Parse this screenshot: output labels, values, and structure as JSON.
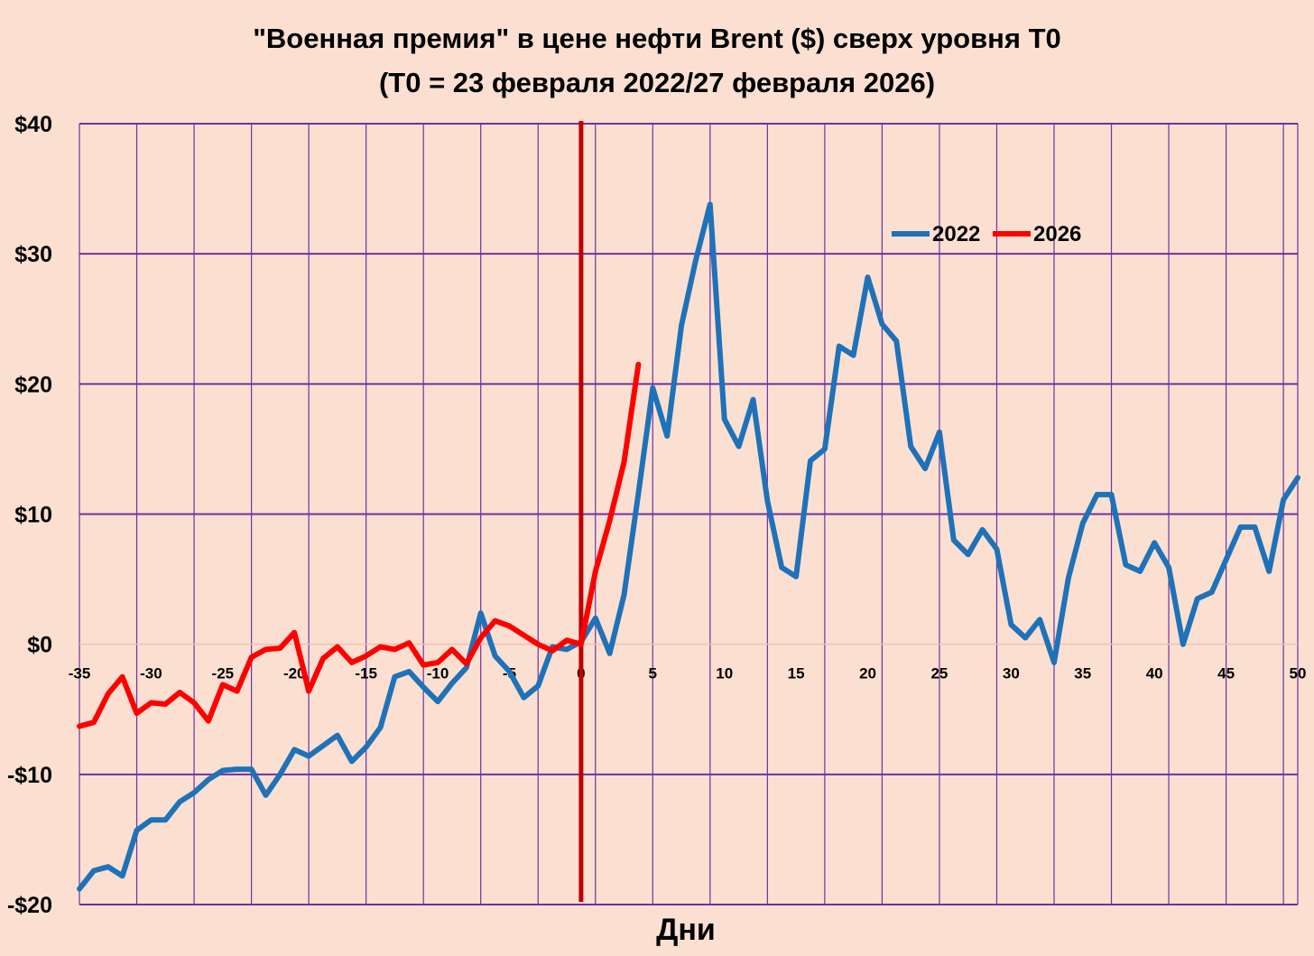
{
  "chart_data": {
    "type": "line",
    "title_line1": "\"Военная премия\" в цене нефти Brent ($) сверх уровня Т0",
    "title_line2": "(Т0 = 23 февраля 2022/27 февраля 2026)",
    "xlabel": "Дни",
    "ylabel": "",
    "xlim": [
      -35,
      50
    ],
    "ylim": [
      -20,
      40
    ],
    "x_ticks": [
      -35,
      -30,
      -25,
      -20,
      -15,
      -10,
      -5,
      0,
      5,
      10,
      15,
      20,
      25,
      30,
      35,
      40,
      45,
      50
    ],
    "y_ticks": [
      {
        "value": 40,
        "label": "$40"
      },
      {
        "value": 30,
        "label": "$30"
      },
      {
        "value": 20,
        "label": "$20"
      },
      {
        "value": 10,
        "label": "$10"
      },
      {
        "value": 0,
        "label": "$0"
      },
      {
        "value": -10,
        "label": "-$10"
      },
      {
        "value": -20,
        "label": "-$20"
      }
    ],
    "grid": true,
    "legend_position": "top-right",
    "vertical_marker": {
      "x": 0,
      "color": "#c00000"
    },
    "colors": {
      "background": "#fbe0d2",
      "grid": "#7030a0",
      "zero_line": "#f2c0b0"
    },
    "series": [
      {
        "name": "2022",
        "color": "#1f72b8",
        "x": [
          -35,
          -34,
          -33,
          -32,
          -31,
          -30,
          -29,
          -28,
          -27,
          -26,
          -25,
          -24,
          -23,
          -22,
          -21,
          -20,
          -19,
          -18,
          -17,
          -16,
          -15,
          -14,
          -13,
          -12,
          -11,
          -10,
          -9,
          -8,
          -7,
          -6,
          -5,
          -4,
          -3,
          -2,
          -1,
          0,
          1,
          2,
          3,
          4,
          5,
          6,
          7,
          8,
          9,
          10,
          11,
          12,
          13,
          14,
          15,
          16,
          17,
          18,
          19,
          20,
          21,
          22,
          23,
          24,
          25,
          26,
          27,
          28,
          29,
          30,
          31,
          32,
          33,
          34,
          35,
          36,
          37,
          38,
          39,
          40,
          41,
          42,
          43,
          44,
          45,
          46,
          47,
          48,
          49,
          50
        ],
        "values": [
          -18.8,
          -17.4,
          -17.1,
          -17.8,
          -14.3,
          -13.5,
          -13.5,
          -12.1,
          -11.4,
          -10.4,
          -9.7,
          -9.6,
          -9.6,
          -11.6,
          -10.0,
          -8.1,
          -8.6,
          -7.8,
          -7.0,
          -9.0,
          -7.9,
          -6.4,
          -2.5,
          -2.1,
          -3.3,
          -4.4,
          -3.0,
          -1.8,
          2.4,
          -0.9,
          -2.1,
          -4.1,
          -3.2,
          -0.2,
          -0.4,
          0.2,
          2.0,
          -0.7,
          3.8,
          11.6,
          19.7,
          16.0,
          24.5,
          29.5,
          33.8,
          17.3,
          15.2,
          18.8,
          11.0,
          5.9,
          5.2,
          14.1,
          15.0,
          22.9,
          22.2,
          28.2,
          24.6,
          23.3,
          15.2,
          13.5,
          16.3,
          8.0,
          6.9,
          8.8,
          7.3,
          1.5,
          0.5,
          1.9,
          -1.4,
          5.1,
          9.3,
          11.5,
          11.5,
          6.1,
          5.6,
          7.8,
          5.9,
          0.0,
          3.5,
          4.0,
          6.5,
          9.0,
          9.0,
          5.6,
          11.1,
          12.8
        ]
      },
      {
        "name": "2026",
        "color": "#ff0000",
        "x": [
          -35,
          -34,
          -33,
          -32,
          -31,
          -30,
          -29,
          -28,
          -27,
          -26,
          -25,
          -24,
          -23,
          -22,
          -21,
          -20,
          -19,
          -18,
          -17,
          -16,
          -15,
          -14,
          -13,
          -12,
          -11,
          -10,
          -9,
          -8,
          -7,
          -6,
          -5,
          -4,
          -3,
          -2,
          -1,
          0,
          1,
          2,
          3,
          4
        ],
        "values": [
          -6.3,
          -6.0,
          -3.8,
          -2.5,
          -5.3,
          -4.5,
          -4.6,
          -3.7,
          -4.5,
          -5.9,
          -3.1,
          -3.6,
          -1.0,
          -0.4,
          -0.3,
          0.9,
          -3.6,
          -1.1,
          -0.2,
          -1.4,
          -0.9,
          -0.2,
          -0.4,
          0.1,
          -1.6,
          -1.4,
          -0.4,
          -1.5,
          0.5,
          1.8,
          1.4,
          0.7,
          0.0,
          -0.5,
          0.3,
          0.0,
          5.6,
          9.5,
          14.0,
          21.5
        ]
      }
    ]
  }
}
